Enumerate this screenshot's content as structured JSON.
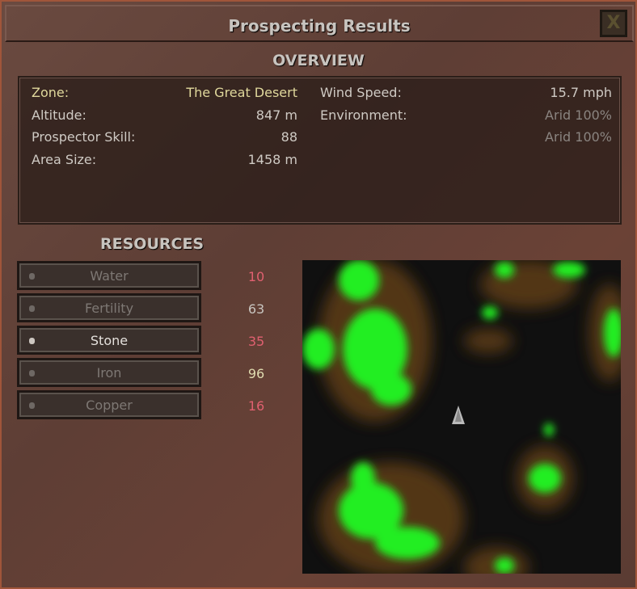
{
  "window": {
    "title": "Prospecting Results",
    "close_label": "X"
  },
  "overview": {
    "heading": "OVERVIEW",
    "left": [
      {
        "label": "Zone:",
        "value": "The Great Desert",
        "highlight": true
      },
      {
        "label": "Altitude:",
        "value": "847 m"
      },
      {
        "label": "Prospector Skill:",
        "value": "88"
      },
      {
        "label": "Area Size:",
        "value": "1458 m"
      }
    ],
    "right": [
      {
        "label": "Wind Speed:",
        "value": "15.7 mph"
      },
      {
        "label": "Environment:",
        "value": "Arid 100%"
      },
      {
        "label": "",
        "value": "Arid 100%"
      }
    ]
  },
  "resources": {
    "heading": "RESOURCES",
    "items": [
      {
        "label": "Water",
        "value": "10",
        "color": "#e06070"
      },
      {
        "label": "Fertility",
        "value": "63",
        "color": "#c8c4bf"
      },
      {
        "label": "Stone",
        "value": "35",
        "color": "#e06070",
        "selected": true
      },
      {
        "label": "Iron",
        "value": "96",
        "color": "#e0dcb0"
      },
      {
        "label": "Copper",
        "value": "16",
        "color": "#e06070"
      }
    ]
  },
  "map": {
    "deposit_color": "#22ee22",
    "marker_icon": "player-marker-icon"
  }
}
